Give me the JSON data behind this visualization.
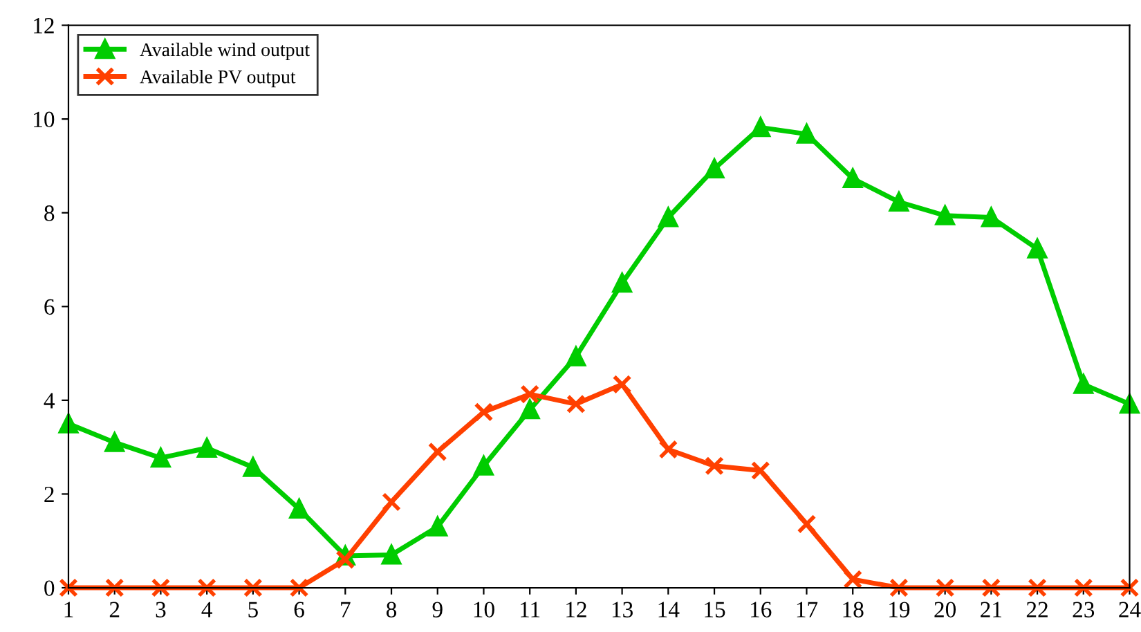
{
  "chart_data": {
    "type": "line",
    "categories": [
      "1",
      "2",
      "3",
      "4",
      "5",
      "6",
      "7",
      "8",
      "9",
      "10",
      "11",
      "12",
      "13",
      "14",
      "15",
      "16",
      "17",
      "18",
      "19",
      "20",
      "21",
      "22",
      "23",
      "24"
    ],
    "series": [
      {
        "name": "Available wind output",
        "color": "#00cc00",
        "marker": "triangle",
        "values": [
          3.5,
          3.1,
          2.77,
          2.98,
          2.57,
          1.68,
          0.68,
          0.7,
          1.3,
          2.6,
          3.8,
          4.93,
          6.5,
          7.9,
          8.94,
          9.82,
          9.68,
          8.73,
          8.23,
          7.94,
          7.9,
          7.23,
          4.34,
          3.92
        ]
      },
      {
        "name": "Available PV output",
        "color": "#ff4000",
        "marker": "cross",
        "values": [
          0,
          0,
          0,
          0,
          0,
          0,
          0.6,
          1.83,
          2.9,
          3.75,
          4.13,
          3.92,
          4.34,
          2.95,
          2.6,
          2.5,
          1.36,
          0.18,
          0,
          0,
          0,
          0,
          0,
          0
        ]
      }
    ],
    "ylim": [
      0,
      12
    ],
    "yticks": [
      0,
      2,
      4,
      6,
      8,
      10,
      12
    ],
    "grid": false,
    "legend": "top left",
    "line_style": "solid"
  }
}
